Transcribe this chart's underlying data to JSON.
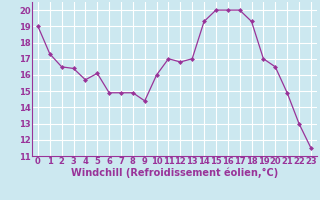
{
  "x": [
    0,
    1,
    2,
    3,
    4,
    5,
    6,
    7,
    8,
    9,
    10,
    11,
    12,
    13,
    14,
    15,
    16,
    17,
    18,
    19,
    20,
    21,
    22,
    23
  ],
  "y": [
    19.0,
    17.3,
    16.5,
    16.4,
    15.7,
    16.1,
    14.9,
    14.9,
    14.9,
    14.4,
    16.0,
    17.0,
    16.8,
    17.0,
    19.3,
    20.0,
    20.0,
    20.0,
    19.3,
    17.0,
    16.5,
    14.9,
    13.0,
    11.5
  ],
  "line_color": "#993399",
  "marker": "D",
  "marker_size": 2.0,
  "bg_color": "#cce8f0",
  "grid_color": "#ffffff",
  "xlabel": "Windchill (Refroidissement éolien,°C)",
  "xlabel_fontsize": 7.0,
  "ylim": [
    11,
    20.5
  ],
  "yticks": [
    11,
    12,
    13,
    14,
    15,
    16,
    17,
    18,
    19,
    20
  ],
  "xticks": [
    0,
    1,
    2,
    3,
    4,
    5,
    6,
    7,
    8,
    9,
    10,
    11,
    12,
    13,
    14,
    15,
    16,
    17,
    18,
    19,
    20,
    21,
    22,
    23
  ],
  "tick_fontsize": 6.0,
  "tick_color": "#993399",
  "spine_color": "#993399",
  "line_width": 0.9
}
